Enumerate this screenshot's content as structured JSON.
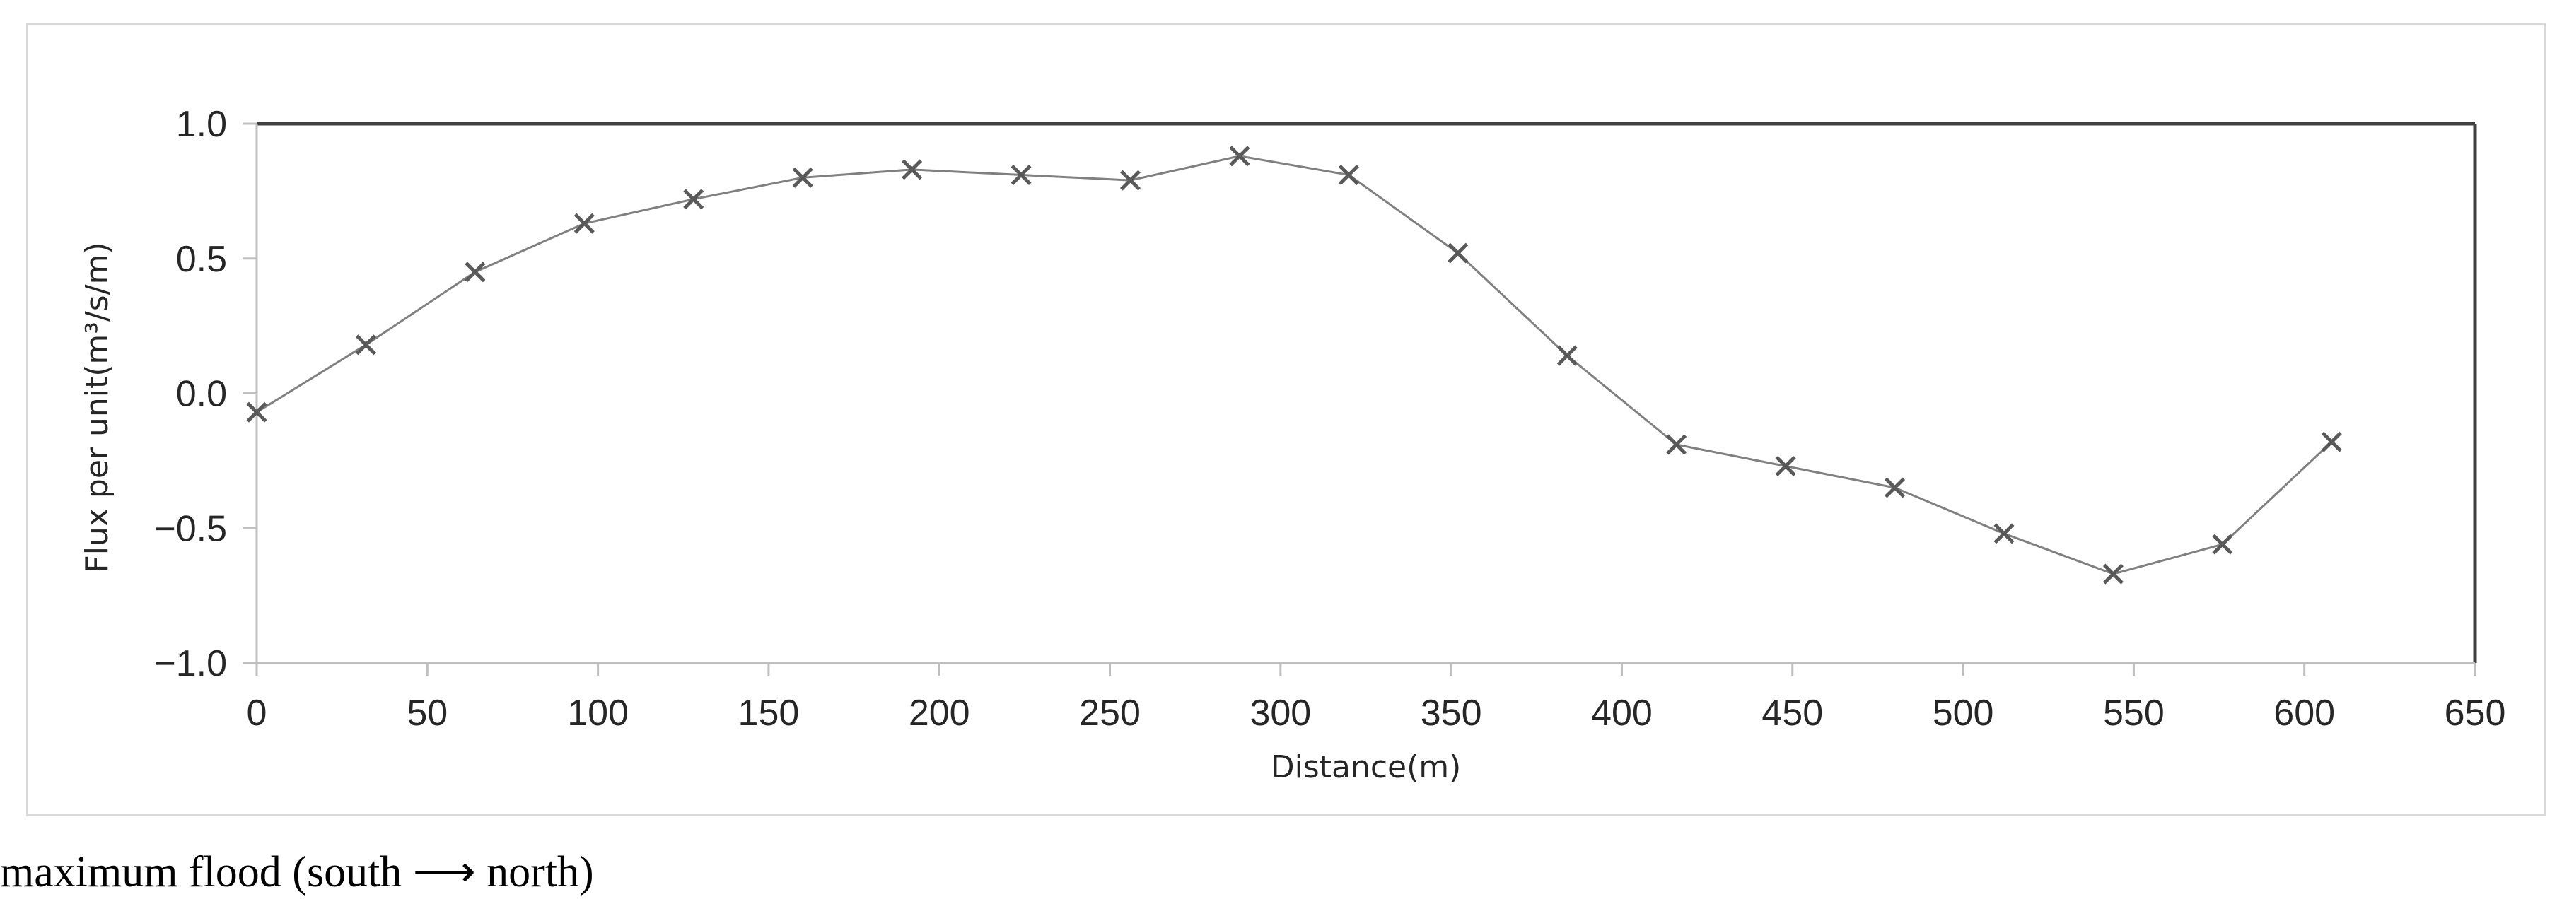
{
  "chart_data": {
    "type": "line",
    "xlabel": "Distance(m)",
    "ylabel": "Flux per unit(m³/s/m)",
    "xlim": [
      0,
      650
    ],
    "ylim": [
      -1.0,
      1.0
    ],
    "x_ticks": [
      0,
      50,
      100,
      150,
      200,
      250,
      300,
      350,
      400,
      450,
      500,
      550,
      600,
      650
    ],
    "x_tick_labels": [
      "0",
      "50",
      "100",
      "150",
      "200",
      "250",
      "300",
      "350",
      "400",
      "450",
      "500",
      "550",
      "600",
      "650"
    ],
    "y_ticks": [
      1.0,
      0.5,
      0.0,
      -0.5,
      -1.0
    ],
    "y_tick_labels": [
      "1.0",
      "0.5",
      "0.0",
      "−0.5",
      "−1.0"
    ],
    "grid": false,
    "marker": "x",
    "line_color": "#808080",
    "marker_color": "#595959",
    "series": [
      {
        "x": [
          0,
          32,
          64,
          96,
          128,
          160,
          192,
          224,
          256,
          288,
          320,
          352,
          384,
          416,
          448,
          480,
          512,
          544,
          576,
          608
        ],
        "y": [
          -0.07,
          0.18,
          0.45,
          0.63,
          0.72,
          0.8,
          0.83,
          0.81,
          0.79,
          0.88,
          0.81,
          0.52,
          0.14,
          -0.19,
          -0.27,
          -0.35,
          -0.52,
          -0.67,
          -0.56,
          -0.18
        ]
      }
    ]
  },
  "caption": "maximum flood (south ⟶ north)"
}
